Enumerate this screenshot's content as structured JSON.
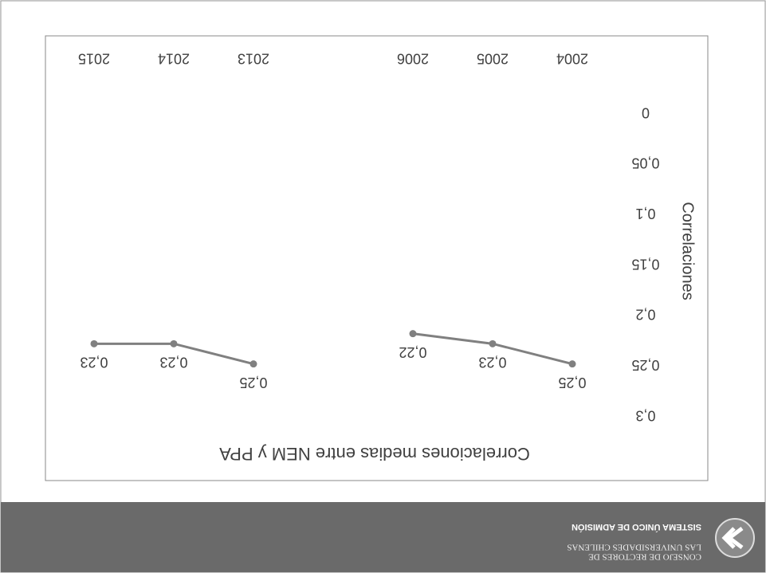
{
  "footer": {
    "org_line1": "CONSEJO DE RECTORES DE",
    "org_line2": "LAS UNIVERSIDADES CHILENAS",
    "system": "SISTEMA ÚNICO DE ADMISIÓN"
  },
  "chart_data": {
    "type": "line",
    "title": "Correlaciones medias entre NEM y PPA",
    "y_label": "Correlaciones",
    "categories": [
      "2004",
      "2005",
      "2006",
      null,
      "2013",
      "2014",
      "2015"
    ],
    "series": [
      {
        "name": "Correlaciones",
        "color": "#808080",
        "values": [
          0.25,
          0.23,
          0.22,
          null,
          0.25,
          0.23,
          0.23
        ],
        "value_labels": [
          "0,25",
          "0,23",
          "0,22",
          null,
          "0,25",
          "0,23",
          "0,23"
        ]
      }
    ],
    "ylim": [
      0,
      0.3
    ],
    "yticks": [
      0,
      {
        "value": 0.05,
        "label": "0,05"
      },
      {
        "value": 0.1,
        "label": "0,1"
      },
      {
        "value": 0.15,
        "label": "0,15"
      },
      {
        "value": 0.2,
        "label": "0,2"
      },
      {
        "value": 0.25,
        "label": "0,25"
      },
      {
        "value": 0.3,
        "label": "0,3"
      }
    ],
    "grid": false
  }
}
